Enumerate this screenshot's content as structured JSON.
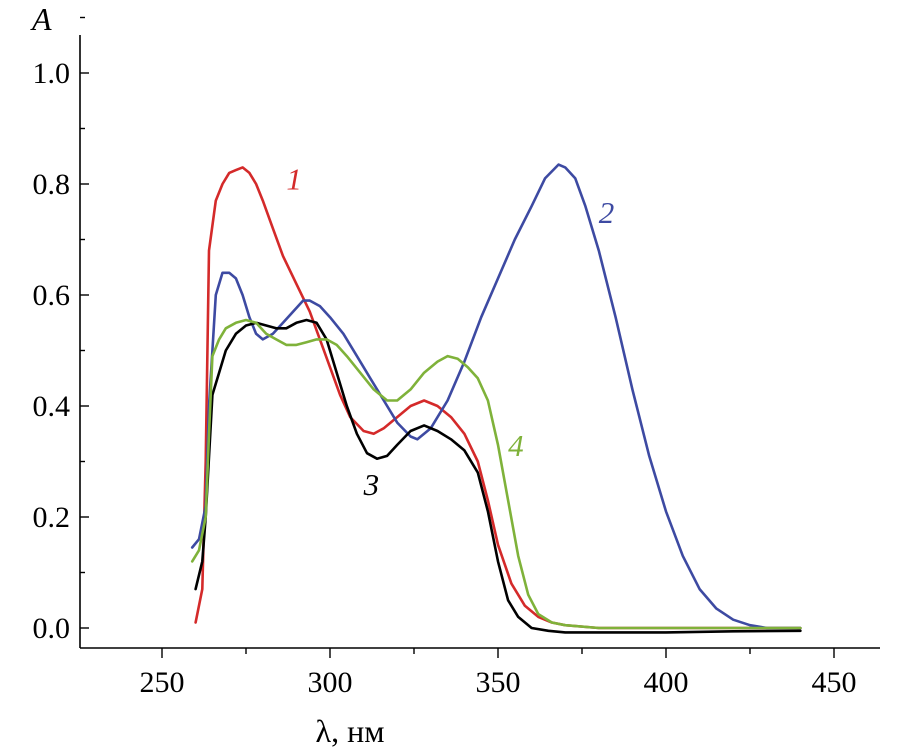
{
  "chart_data": {
    "type": "line",
    "title": "",
    "xlabel": "λ, нм",
    "ylabel": "A",
    "xlim": [
      225,
      470
    ],
    "ylim": [
      -0.03,
      1.1
    ],
    "x_ticks": [
      250,
      300,
      350,
      400,
      450
    ],
    "y_ticks": [
      0.0,
      0.2,
      0.4,
      0.6,
      0.8,
      1.0
    ],
    "x_tick_labels": [
      "250",
      "300",
      "350",
      "400",
      "450"
    ],
    "y_tick_labels": [
      "0.0",
      "0.2",
      "0.4",
      "0.6",
      "0.8",
      "1.0"
    ],
    "grid": false,
    "series": [
      {
        "name": "1",
        "color": "#d42a2a",
        "label_at": [
          287,
          0.79
        ],
        "points": [
          [
            260,
            0.01
          ],
          [
            262,
            0.07
          ],
          [
            263,
            0.3
          ],
          [
            264,
            0.68
          ],
          [
            266,
            0.77
          ],
          [
            268,
            0.8
          ],
          [
            270,
            0.82
          ],
          [
            272,
            0.825
          ],
          [
            274,
            0.83
          ],
          [
            276,
            0.82
          ],
          [
            278,
            0.8
          ],
          [
            280,
            0.77
          ],
          [
            283,
            0.72
          ],
          [
            286,
            0.67
          ],
          [
            290,
            0.62
          ],
          [
            294,
            0.57
          ],
          [
            297,
            0.52
          ],
          [
            300,
            0.47
          ],
          [
            303,
            0.42
          ],
          [
            306,
            0.38
          ],
          [
            310,
            0.355
          ],
          [
            313,
            0.35
          ],
          [
            316,
            0.36
          ],
          [
            320,
            0.38
          ],
          [
            324,
            0.4
          ],
          [
            328,
            0.41
          ],
          [
            332,
            0.4
          ],
          [
            336,
            0.38
          ],
          [
            340,
            0.35
          ],
          [
            344,
            0.3
          ],
          [
            347,
            0.23
          ],
          [
            350,
            0.15
          ],
          [
            354,
            0.08
          ],
          [
            358,
            0.04
          ],
          [
            362,
            0.02
          ],
          [
            366,
            0.01
          ],
          [
            370,
            0.005
          ],
          [
            380,
            0.0
          ],
          [
            400,
            0.0
          ],
          [
            420,
            0.0
          ],
          [
            440,
            0.0
          ]
        ]
      },
      {
        "name": "2",
        "color": "#3d4aa2",
        "label_at": [
          380,
          0.73
        ],
        "points": [
          [
            259,
            0.145
          ],
          [
            261,
            0.16
          ],
          [
            263,
            0.22
          ],
          [
            264,
            0.4
          ],
          [
            266,
            0.6
          ],
          [
            268,
            0.64
          ],
          [
            270,
            0.64
          ],
          [
            272,
            0.63
          ],
          [
            274,
            0.6
          ],
          [
            276,
            0.56
          ],
          [
            278,
            0.53
          ],
          [
            280,
            0.52
          ],
          [
            283,
            0.53
          ],
          [
            286,
            0.55
          ],
          [
            289,
            0.57
          ],
          [
            292,
            0.59
          ],
          [
            294,
            0.59
          ],
          [
            297,
            0.58
          ],
          [
            300,
            0.56
          ],
          [
            304,
            0.53
          ],
          [
            308,
            0.49
          ],
          [
            312,
            0.45
          ],
          [
            316,
            0.41
          ],
          [
            320,
            0.37
          ],
          [
            324,
            0.345
          ],
          [
            326,
            0.34
          ],
          [
            330,
            0.36
          ],
          [
            335,
            0.41
          ],
          [
            340,
            0.48
          ],
          [
            345,
            0.56
          ],
          [
            350,
            0.63
          ],
          [
            355,
            0.7
          ],
          [
            360,
            0.76
          ],
          [
            364,
            0.81
          ],
          [
            368,
            0.835
          ],
          [
            370,
            0.83
          ],
          [
            373,
            0.81
          ],
          [
            376,
            0.76
          ],
          [
            380,
            0.68
          ],
          [
            385,
            0.56
          ],
          [
            390,
            0.43
          ],
          [
            395,
            0.31
          ],
          [
            400,
            0.21
          ],
          [
            405,
            0.13
          ],
          [
            410,
            0.07
          ],
          [
            415,
            0.035
          ],
          [
            420,
            0.015
          ],
          [
            425,
            0.005
          ],
          [
            430,
            0.0
          ],
          [
            440,
            0.0
          ]
        ]
      },
      {
        "name": "3",
        "color": "#000000",
        "label_at": [
          310,
          0.24
        ],
        "points": [
          [
            260,
            0.07
          ],
          [
            262,
            0.12
          ],
          [
            263,
            0.2
          ],
          [
            265,
            0.42
          ],
          [
            267,
            0.46
          ],
          [
            269,
            0.5
          ],
          [
            272,
            0.53
          ],
          [
            275,
            0.545
          ],
          [
            278,
            0.55
          ],
          [
            281,
            0.545
          ],
          [
            284,
            0.54
          ],
          [
            287,
            0.54
          ],
          [
            290,
            0.55
          ],
          [
            293,
            0.555
          ],
          [
            296,
            0.55
          ],
          [
            299,
            0.52
          ],
          [
            302,
            0.46
          ],
          [
            305,
            0.4
          ],
          [
            308,
            0.35
          ],
          [
            311,
            0.315
          ],
          [
            314,
            0.305
          ],
          [
            317,
            0.31
          ],
          [
            320,
            0.33
          ],
          [
            324,
            0.355
          ],
          [
            328,
            0.365
          ],
          [
            332,
            0.355
          ],
          [
            336,
            0.34
          ],
          [
            340,
            0.32
          ],
          [
            344,
            0.28
          ],
          [
            347,
            0.21
          ],
          [
            350,
            0.12
          ],
          [
            353,
            0.05
          ],
          [
            356,
            0.02
          ],
          [
            360,
            0.0
          ],
          [
            365,
            -0.005
          ],
          [
            370,
            -0.008
          ],
          [
            380,
            -0.008
          ],
          [
            400,
            -0.008
          ],
          [
            420,
            -0.006
          ],
          [
            440,
            -0.005
          ]
        ]
      },
      {
        "name": "4",
        "color": "#7fb23a",
        "label_at": [
          353,
          0.31
        ],
        "points": [
          [
            259,
            0.12
          ],
          [
            261,
            0.14
          ],
          [
            263,
            0.2
          ],
          [
            264,
            0.35
          ],
          [
            265,
            0.49
          ],
          [
            267,
            0.52
          ],
          [
            269,
            0.54
          ],
          [
            272,
            0.55
          ],
          [
            275,
            0.555
          ],
          [
            278,
            0.55
          ],
          [
            281,
            0.53
          ],
          [
            284,
            0.52
          ],
          [
            287,
            0.51
          ],
          [
            290,
            0.51
          ],
          [
            293,
            0.515
          ],
          [
            296,
            0.52
          ],
          [
            299,
            0.52
          ],
          [
            302,
            0.51
          ],
          [
            305,
            0.49
          ],
          [
            309,
            0.46
          ],
          [
            313,
            0.43
          ],
          [
            317,
            0.41
          ],
          [
            320,
            0.41
          ],
          [
            324,
            0.43
          ],
          [
            328,
            0.46
          ],
          [
            332,
            0.48
          ],
          [
            335,
            0.49
          ],
          [
            338,
            0.485
          ],
          [
            341,
            0.47
          ],
          [
            344,
            0.45
          ],
          [
            347,
            0.41
          ],
          [
            350,
            0.33
          ],
          [
            353,
            0.23
          ],
          [
            356,
            0.13
          ],
          [
            359,
            0.06
          ],
          [
            362,
            0.025
          ],
          [
            366,
            0.01
          ],
          [
            370,
            0.005
          ],
          [
            380,
            0.0
          ],
          [
            400,
            0.0
          ],
          [
            420,
            0.0
          ],
          [
            440,
            0.0
          ]
        ]
      }
    ]
  }
}
